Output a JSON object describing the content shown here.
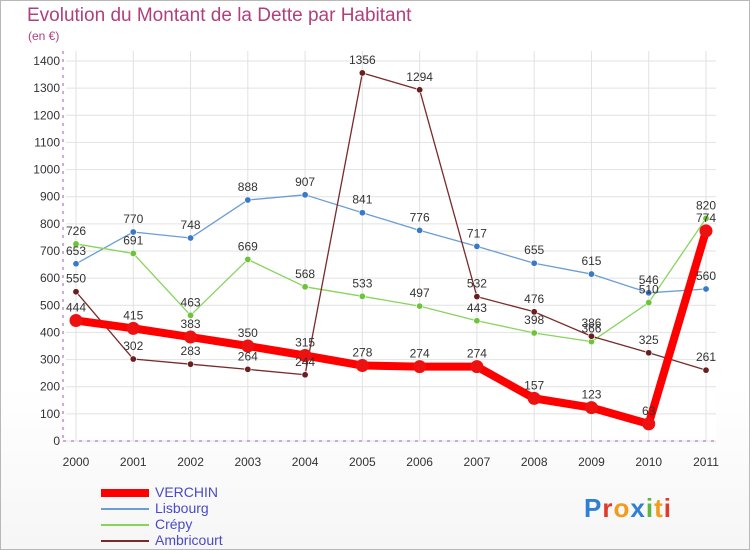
{
  "title": "Evolution du Montant de la Dette par Habitant",
  "unit_label": "(en €)",
  "logo": {
    "text": "Proxiti",
    "letters": [
      {
        "ch": "P",
        "color": "#2f7fd4"
      },
      {
        "ch": "r",
        "color": "#e03a2b"
      },
      {
        "ch": "o",
        "color": "#f29b1e"
      },
      {
        "ch": "x",
        "color": "#2f7fd4"
      },
      {
        "ch": "i",
        "color": "#5cb83c"
      },
      {
        "ch": "t",
        "color": "#f29b1e"
      },
      {
        "ch": "i",
        "color": "#e03a2b"
      }
    ]
  },
  "chart_data": {
    "type": "line",
    "title": "Evolution du Montant de la Dette par Habitant",
    "ylabel": "(en €)",
    "xlabel": "",
    "ylim": [
      0,
      1400
    ],
    "yticks": [
      0,
      100,
      200,
      300,
      400,
      500,
      600,
      700,
      800,
      900,
      1000,
      1100,
      1200,
      1300,
      1400
    ],
    "x": [
      "2000",
      "2001",
      "2002",
      "2003",
      "2004",
      "2005",
      "2006",
      "2007",
      "2008",
      "2009",
      "2010",
      "2011"
    ],
    "grid": true,
    "legend_position": "bottom-left",
    "series": [
      {
        "name": "VERCHIN",
        "color": "#ff0000",
        "marker_color": "#ee1111",
        "emphasis": true,
        "values": [
          444,
          415,
          383,
          350,
          315,
          278,
          274,
          274,
          157,
          123,
          63,
          774
        ],
        "labels": [
          "444",
          "415",
          "383",
          "350",
          "315",
          "278",
          "274",
          "274",
          "157",
          "123",
          "63",
          "774"
        ]
      },
      {
        "name": "Lisbourg",
        "color": "#6b9dd6",
        "marker_color": "#3a78c9",
        "values": [
          653,
          770,
          748,
          888,
          907,
          841,
          776,
          717,
          655,
          615,
          546,
          560
        ],
        "labels": [
          "653",
          "770",
          "748",
          "888",
          "907",
          "841",
          "776",
          "717",
          "655",
          "615",
          "546",
          "560"
        ]
      },
      {
        "name": "Crépy",
        "color": "#88d45a",
        "marker_color": "#6cc43a",
        "values": [
          726,
          691,
          463,
          669,
          568,
          533,
          497,
          443,
          398,
          366,
          510,
          820
        ],
        "labels": [
          "726",
          "691",
          "463",
          "669",
          "568",
          "533",
          "497",
          "443",
          "398",
          "366",
          "510",
          "820"
        ]
      },
      {
        "name": "Ambricourt",
        "color": "#7a2a2a",
        "marker_color": "#6a1f1f",
        "values": [
          550,
          302,
          283,
          264,
          244,
          1356,
          1294,
          532,
          476,
          386,
          325,
          261
        ],
        "labels": [
          "550",
          "302",
          "283",
          "264",
          "244",
          "1356",
          "1294",
          "532",
          "476",
          "386",
          "325",
          "261"
        ]
      }
    ]
  }
}
